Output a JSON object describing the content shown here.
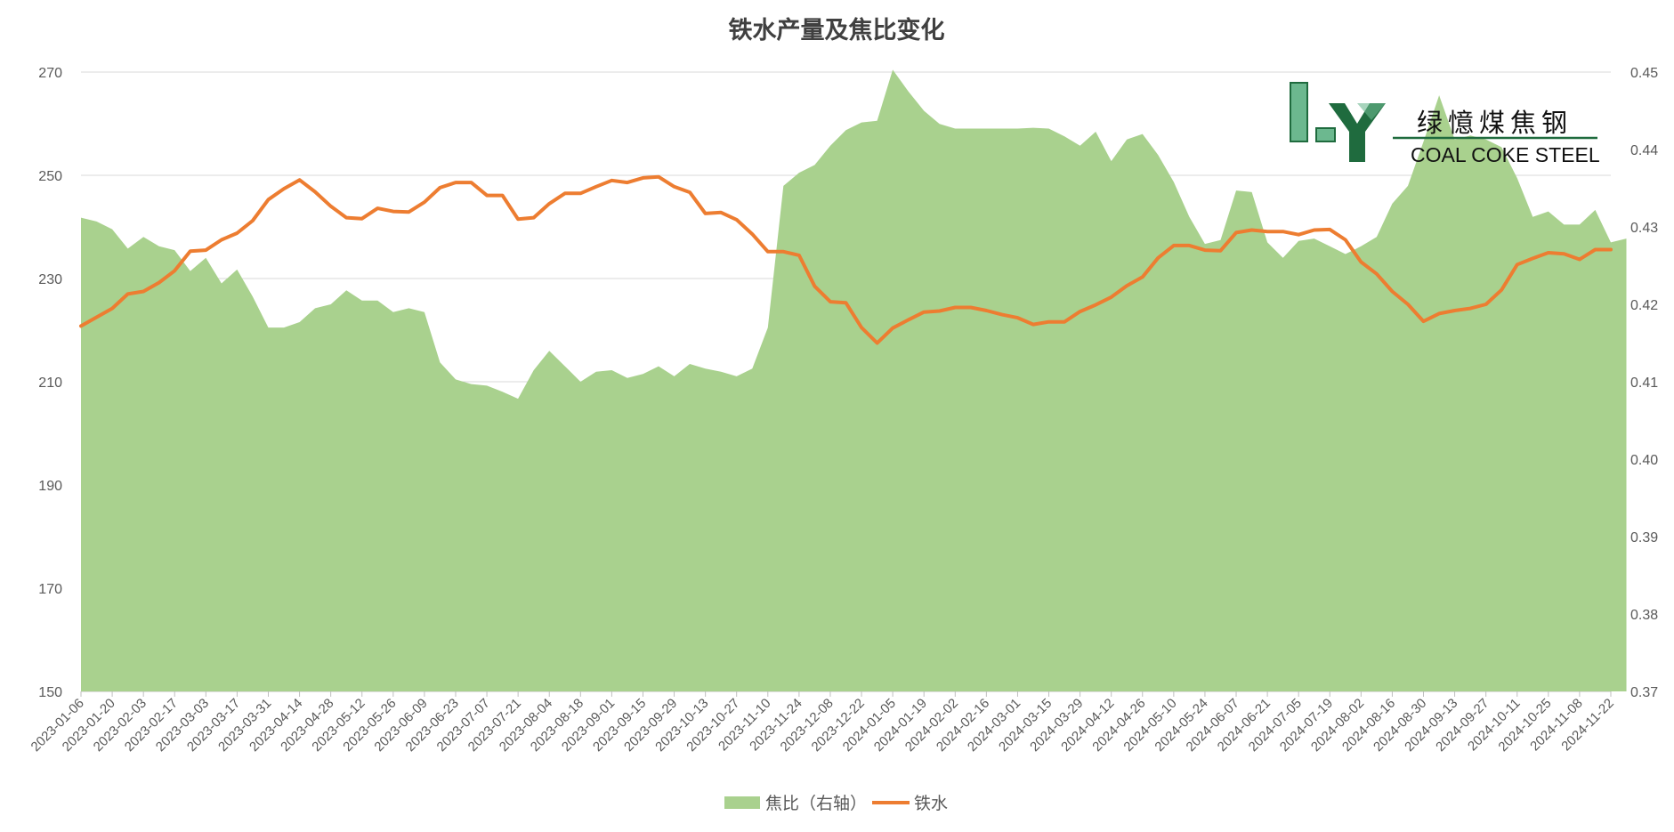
{
  "chart_data": {
    "type": "area+line",
    "title": "铁水产量及焦比变化",
    "left_axis": {
      "min": 150,
      "max": 270,
      "ticks": [
        150,
        170,
        190,
        210,
        230,
        250,
        270
      ]
    },
    "right_axis": {
      "min": 0.37,
      "max": 0.45,
      "ticks": [
        "0.37",
        "0.38",
        "0.39",
        "0.40",
        "0.41",
        "0.42",
        "0.43",
        "0.44",
        "0.45"
      ]
    },
    "x_tick_labels": [
      "2023-01-06",
      "2023-01-20",
      "2023-02-03",
      "2023-02-17",
      "2023-03-03",
      "2023-03-17",
      "2023-03-31",
      "2023-04-14",
      "2023-04-28",
      "2023-05-12",
      "2023-05-26",
      "2023-06-09",
      "2023-06-23",
      "2023-07-07",
      "2023-07-21",
      "2023-08-04",
      "2023-08-18",
      "2023-09-01",
      "2023-09-15",
      "2023-09-29",
      "2023-10-13",
      "2023-10-27",
      "2023-11-10",
      "2023-11-24",
      "2023-12-08",
      "2023-12-22",
      "2024-01-05",
      "2024-01-19",
      "2024-02-02",
      "2024-02-16",
      "2024-03-01",
      "2024-03-15",
      "2024-03-29",
      "2024-04-12",
      "2024-04-26",
      "2024-05-10",
      "2024-05-24",
      "2024-06-07",
      "2024-06-21",
      "2024-07-05",
      "2024-07-19",
      "2024-08-02",
      "2024-08-16",
      "2024-08-30",
      "2024-09-13",
      "2024-09-27",
      "2024-10-11",
      "2024-10-25",
      "2024-11-08",
      "2024-11-22"
    ],
    "grid": "horizontal",
    "legend_position": "bottom",
    "series": [
      {
        "name": "焦比（右轴）",
        "type": "area",
        "axis": "right",
        "color": "#A9D18E",
        "values": [
          0.4312,
          0.4307,
          0.4297,
          0.4272,
          0.4287,
          0.4275,
          0.427,
          0.4243,
          0.426,
          0.4227,
          0.4245,
          0.421,
          0.417,
          0.417,
          0.4177,
          0.4195,
          0.42,
          0.4218,
          0.4205,
          0.4205,
          0.419,
          0.4195,
          0.419,
          0.4125,
          0.4103,
          0.4097,
          0.4095,
          0.4087,
          0.4078,
          0.4115,
          0.414,
          0.412,
          0.41,
          0.4113,
          0.4115,
          0.4105,
          0.411,
          0.412,
          0.4107,
          0.4123,
          0.4117,
          0.4113,
          0.4107,
          0.4117,
          0.417,
          0.4353,
          0.437,
          0.438,
          0.4405,
          0.4425,
          0.4435,
          0.4437,
          0.4503,
          0.4475,
          0.445,
          0.4433,
          0.4427,
          0.4427,
          0.4427,
          0.4427,
          0.4427,
          0.4428,
          0.4427,
          0.4417,
          0.4405,
          0.4423,
          0.4385,
          0.4413,
          0.442,
          0.4393,
          0.4358,
          0.4313,
          0.4278,
          0.4283,
          0.4347,
          0.4345,
          0.428,
          0.426,
          0.4282,
          0.4285,
          0.4275,
          0.4265,
          0.4275,
          0.4287,
          0.433,
          0.4353,
          0.441,
          0.447,
          0.4413,
          0.4418,
          0.4413,
          0.4403,
          0.4363,
          0.4313,
          0.432,
          0.4303,
          0.4303,
          0.4322,
          0.428,
          0.4285
        ]
      },
      {
        "name": "铁水",
        "type": "line",
        "axis": "left",
        "color": "#ED7D31",
        "values": [
          220.8,
          222.5,
          224.2,
          227.0,
          227.5,
          229.2,
          231.5,
          235.3,
          235.5,
          237.5,
          238.8,
          241.2,
          245.3,
          247.4,
          249.1,
          246.8,
          244.0,
          241.8,
          241.6,
          243.6,
          243.0,
          242.9,
          244.8,
          247.6,
          248.6,
          248.6,
          246.1,
          246.1,
          241.5,
          241.8,
          244.5,
          246.5,
          246.5,
          247.8,
          249.0,
          248.6,
          249.5,
          249.7,
          247.8,
          246.7,
          242.6,
          242.8,
          241.4,
          238.6,
          235.2,
          235.2,
          234.5,
          228.5,
          225.5,
          225.3,
          220.5,
          217.5,
          220.4,
          222.0,
          223.5,
          223.7,
          224.4,
          224.4,
          223.8,
          223.0,
          222.4,
          221.1,
          221.6,
          221.6,
          223.6,
          224.9,
          226.4,
          228.6,
          230.3,
          234.0,
          236.4,
          236.4,
          235.5,
          235.4,
          238.9,
          239.4,
          239.1,
          239.1,
          238.5,
          239.4,
          239.5,
          237.5,
          233.2,
          230.9,
          227.5,
          225.0,
          221.7,
          223.2,
          223.8,
          224.2,
          225.0,
          227.8,
          232.7,
          233.9,
          235.0,
          234.8,
          233.7,
          235.6,
          235.6
        ]
      }
    ]
  },
  "legend": [
    {
      "label": "焦比（右轴）",
      "color": "#A9D18E",
      "kind": "area"
    },
    {
      "label": "铁水",
      "color": "#ED7D31",
      "kind": "line"
    }
  ],
  "logo": {
    "chinese": "绿憶煤焦钢",
    "english": "COAL COKE STEEL",
    "letters": "LY",
    "color": "#1F6B3E"
  },
  "colors": {
    "grid": "#D9D9D9",
    "axis_text": "#595959",
    "title": "#404040"
  }
}
